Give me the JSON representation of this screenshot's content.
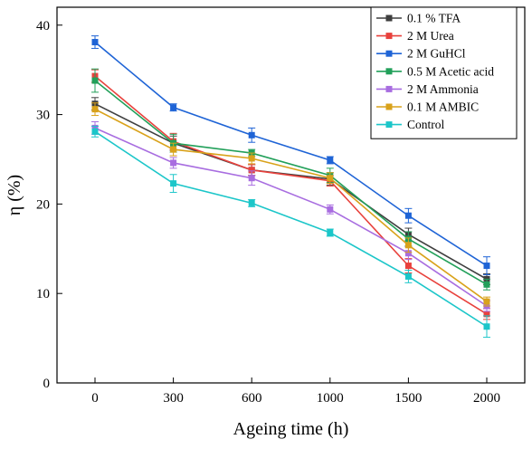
{
  "chart_data": {
    "type": "line",
    "xlabel": "Ageing time  (h)",
    "ylabel": "η (%)",
    "x_categories": [
      "0",
      "300",
      "600",
      "1000",
      "1500",
      "2000"
    ],
    "ylim": [
      0,
      42
    ],
    "yticks": [
      0,
      10,
      20,
      30,
      40
    ],
    "grid": false,
    "legend_position": "top-right",
    "series": [
      {
        "name": "0.1 % TFA",
        "color": "#3f3f3f",
        "values": [
          31.2,
          26.8,
          23.8,
          22.8,
          16.6,
          11.6
        ],
        "errors": [
          0.7,
          0.8,
          0.6,
          0.7,
          0.7,
          0.6
        ]
      },
      {
        "name": "2 M Urea",
        "color": "#e8413c",
        "values": [
          34.3,
          27.0,
          23.8,
          22.6,
          13.1,
          7.7
        ],
        "errors": [
          0.7,
          0.9,
          0.6,
          0.6,
          0.8,
          0.6
        ]
      },
      {
        "name": "2 M GuHCl",
        "color": "#1f64d6",
        "values": [
          38.1,
          30.8,
          27.7,
          24.9,
          18.7,
          13.1
        ],
        "errors": [
          0.7,
          0.4,
          0.8,
          0.4,
          0.8,
          1.0
        ]
      },
      {
        "name": "0.5 M Acetic acid",
        "color": "#22a05a",
        "values": [
          33.8,
          26.8,
          25.7,
          23.2,
          16.1,
          11.0
        ],
        "errors": [
          1.3,
          1.0,
          0.4,
          0.8,
          0.8,
          0.6
        ]
      },
      {
        "name": "2 M Ammonia",
        "color": "#a86de0",
        "values": [
          28.5,
          24.6,
          22.9,
          19.4,
          14.5,
          8.6
        ],
        "errors": [
          0.7,
          0.6,
          0.8,
          0.5,
          0.7,
          0.6
        ]
      },
      {
        "name": "0.1 M AMBIC",
        "color": "#d9a21b",
        "values": [
          30.6,
          26.1,
          25.1,
          22.9,
          15.4,
          9.1
        ],
        "errors": [
          0.7,
          0.7,
          0.6,
          0.6,
          0.8,
          0.5
        ]
      },
      {
        "name": "Control",
        "color": "#1cc6c9",
        "values": [
          28.1,
          22.3,
          20.1,
          16.8,
          11.9,
          6.3
        ],
        "errors": [
          0.6,
          1.0,
          0.4,
          0.4,
          0.7,
          1.2
        ]
      }
    ]
  }
}
